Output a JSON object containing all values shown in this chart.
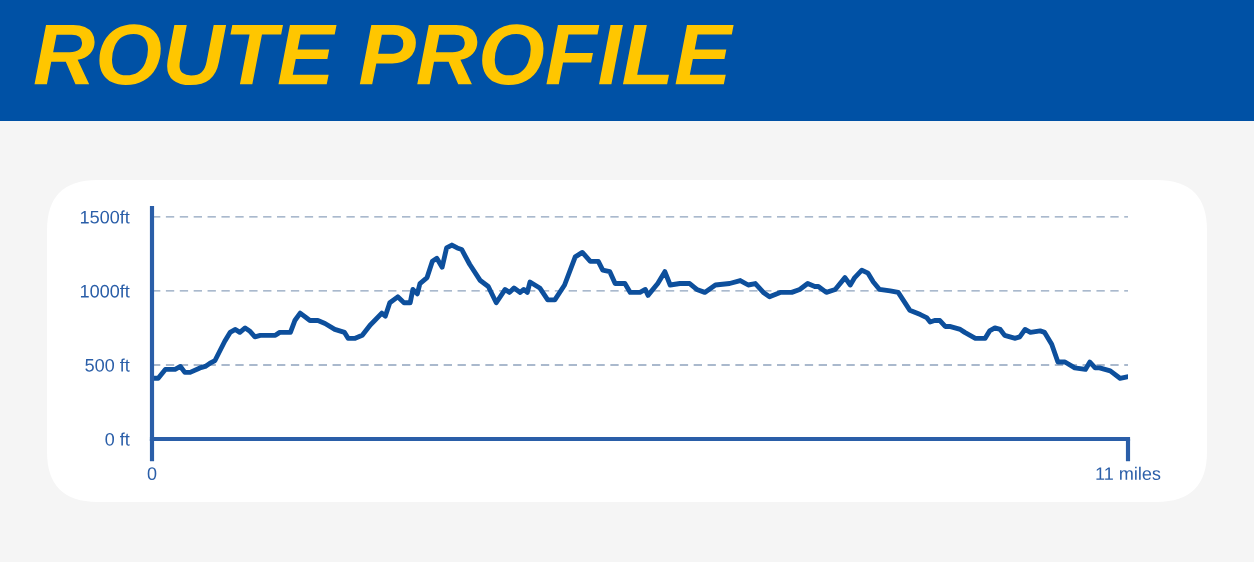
{
  "chart_data": {
    "type": "line",
    "title": "ROUTE PROFILE",
    "x": [
      0,
      0.07,
      0.15,
      0.26,
      0.32,
      0.37,
      0.43,
      0.54,
      0.6,
      0.65,
      0.71,
      0.82,
      0.88,
      0.94,
      0.99,
      1.05,
      1.1,
      1.16,
      1.22,
      1.39,
      1.44,
      1.5,
      1.56,
      1.61,
      1.67,
      1.78,
      1.87,
      1.95,
      2.06,
      2.17,
      2.21,
      2.29,
      2.37,
      2.46,
      2.51,
      2.59,
      2.63,
      2.68,
      2.77,
      2.84,
      2.91,
      2.94,
      2.99,
      3.02,
      3.1,
      3.16,
      3.21,
      3.27,
      3.32,
      3.38,
      3.44,
      3.49,
      3.58,
      3.7,
      3.79,
      3.88,
      3.98,
      4.03,
      4.08,
      4.15,
      4.19,
      4.23,
      4.26,
      4.37,
      4.46,
      4.54,
      4.65,
      4.77,
      4.85,
      4.94,
      5.03,
      5.08,
      5.16,
      5.22,
      5.33,
      5.39,
      5.5,
      5.56,
      5.59,
      5.7,
      5.78,
      5.84,
      5.95,
      6.06,
      6.14,
      6.23,
      6.35,
      6.51,
      6.63,
      6.72,
      6.8,
      6.89,
      6.96,
      7.08,
      7.21,
      7.3,
      7.39,
      7.47,
      7.51,
      7.6,
      7.7,
      7.81,
      7.87,
      7.92,
      8.0,
      8.07,
      8.13,
      8.2,
      8.32,
      8.41,
      8.54,
      8.66,
      8.73,
      8.77,
      8.82,
      8.88,
      8.94,
      8.99,
      9.11,
      9.16,
      9.22,
      9.28,
      9.39,
      9.44,
      9.5,
      9.56,
      9.61,
      9.73,
      9.78,
      9.84,
      9.9,
      10.01,
      10.06,
      10.14,
      10.21,
      10.29,
      10.4,
      10.52,
      10.57,
      10.63,
      10.68,
      10.8,
      10.91,
      10.99
    ],
    "series": [
      {
        "color": "#0d4f9c",
        "values": [
          410,
          410,
          470,
          470,
          490,
          450,
          450,
          480,
          490,
          510,
          530,
          660,
          720,
          740,
          720,
          750,
          730,
          690,
          700,
          700,
          720,
          720,
          720,
          800,
          850,
          800,
          800,
          780,
          740,
          720,
          680,
          680,
          700,
          770,
          800,
          850,
          830,
          920,
          960,
          920,
          920,
          1010,
          980,
          1050,
          1090,
          1200,
          1220,
          1160,
          1290,
          1310,
          1290,
          1280,
          1180,
          1070,
          1030,
          920,
          1010,
          990,
          1020,
          990,
          1010,
          990,
          1060,
          1020,
          940,
          940,
          1040,
          1230,
          1260,
          1200,
          1200,
          1140,
          1130,
          1050,
          1050,
          990,
          990,
          1010,
          970,
          1050,
          1130,
          1040,
          1050,
          1050,
          1010,
          990,
          1040,
          1050,
          1070,
          1040,
          1050,
          990,
          960,
          990,
          990,
          1010,
          1050,
          1030,
          1030,
          990,
          1010,
          1090,
          1040,
          1090,
          1140,
          1120,
          1060,
          1010,
          1000,
          990,
          870,
          840,
          820,
          790,
          800,
          800,
          760,
          760,
          740,
          720,
          700,
          680,
          680,
          730,
          750,
          740,
          700,
          680,
          690,
          740,
          720,
          730,
          720,
          640,
          520,
          520,
          480,
          470,
          520,
          480,
          480,
          460,
          410,
          420
        ]
      }
    ],
    "xlim": [
      0,
      11
    ],
    "xticks": [
      0,
      {
        "value": 11,
        "label": "11 miles"
      }
    ],
    "ylim": [
      0,
      1560
    ],
    "yticks": [
      {
        "value": 0,
        "label": "0 ft"
      },
      {
        "value": 500,
        "label": "500 ft"
      },
      {
        "value": 1000,
        "label": "1000ft"
      },
      {
        "value": 1500,
        "label": "1500ft"
      }
    ],
    "grid": "y",
    "line_style": "solid"
  }
}
